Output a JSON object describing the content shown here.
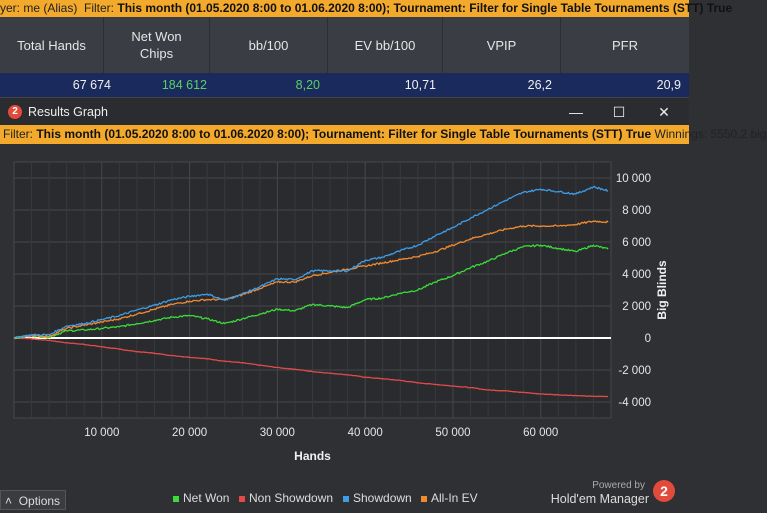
{
  "top_filter": {
    "player_prefix": "yer: me (Alias)",
    "filter_label": "Filter:",
    "filter_text": "This month (01.05.2020 8:00 to 01.06.2020 8:00); Tournament: Filter for Single Table Tournaments (STT) True"
  },
  "stats": {
    "headers": [
      "Total Hands",
      "Net Won\nChips",
      "bb/100",
      "EV bb/100",
      "VPIP",
      "PFR"
    ],
    "values": [
      "67 674",
      "184 612",
      "8,20",
      "10,71",
      "26,2",
      "20,9"
    ]
  },
  "window": {
    "icon_text": "2",
    "title": "Results Graph",
    "minimize": "—",
    "maximize": "☐",
    "close": "✕"
  },
  "graph_filter": {
    "label": "Filter:",
    "text": "This month (01.05.2020 8:00 to 01.06.2020 8:00); Tournament: Filter for Single Table Tournaments (STT) True",
    "winnings": "Winnings: 5550,2 big"
  },
  "colors": {
    "net_won": "#3adb3a",
    "non_showdown": "#e04b48",
    "showdown": "#3f9ce6",
    "all_in_ev": "#f08a30"
  },
  "chart_data": {
    "type": "line",
    "xlabel": "Hands",
    "ylabel": "Big Blinds",
    "xlim": [
      0,
      68000
    ],
    "ylim": [
      -5000,
      11000
    ],
    "x_ticks": [
      10000,
      20000,
      30000,
      40000,
      50000,
      60000
    ],
    "x_tick_labels": [
      "10 000",
      "20 000",
      "30 000",
      "40 000",
      "50 000",
      "60 000"
    ],
    "y_ticks": [
      10000,
      8000,
      6000,
      4000,
      2000,
      0,
      -2000,
      -4000
    ],
    "y_tick_labels": [
      "10 000",
      "8 000",
      "6 000",
      "4 000",
      "2 000",
      "0",
      "-2 000",
      "-4 000"
    ],
    "grid": true,
    "legend_position": "bottom",
    "x": [
      0,
      2000,
      4000,
      6000,
      8000,
      10000,
      12000,
      14000,
      16000,
      18000,
      20000,
      22000,
      24000,
      26000,
      28000,
      30000,
      32000,
      34000,
      36000,
      38000,
      40000,
      42000,
      44000,
      46000,
      48000,
      50000,
      52000,
      54000,
      56000,
      58000,
      60000,
      62000,
      64000,
      66000,
      67674
    ],
    "series": [
      {
        "name": "Net Won",
        "color": "#3adb3a",
        "values": [
          0,
          150,
          50,
          450,
          500,
          600,
          700,
          900,
          1100,
          1300,
          1400,
          1200,
          900,
          1200,
          1500,
          1800,
          1700,
          2100,
          2000,
          1900,
          2400,
          2500,
          2800,
          3000,
          3500,
          3900,
          4400,
          4800,
          5300,
          5700,
          5800,
          5600,
          5400,
          5800,
          5550
        ]
      },
      {
        "name": "Non Showdown",
        "color": "#e04b48",
        "values": [
          0,
          -50,
          -150,
          -300,
          -400,
          -550,
          -700,
          -850,
          -950,
          -1100,
          -1200,
          -1300,
          -1450,
          -1550,
          -1700,
          -1850,
          -1950,
          -2100,
          -2200,
          -2300,
          -2450,
          -2550,
          -2650,
          -2800,
          -2900,
          -3000,
          -3100,
          -3250,
          -3300,
          -3400,
          -3500,
          -3550,
          -3600,
          -3650,
          -3650
        ]
      },
      {
        "name": "Showdown",
        "color": "#3f9ce6",
        "values": [
          0,
          200,
          200,
          750,
          900,
          1150,
          1400,
          1750,
          2050,
          2400,
          2600,
          2750,
          2350,
          2750,
          3200,
          3700,
          3650,
          4200,
          4200,
          4200,
          4850,
          5050,
          5450,
          5800,
          6400,
          6900,
          7500,
          8050,
          8600,
          9100,
          9300,
          9150,
          9000,
          9450,
          9200
        ]
      },
      {
        "name": "All-In EV",
        "color": "#f08a30",
        "values": [
          0,
          150,
          100,
          600,
          800,
          1000,
          1200,
          1500,
          1800,
          2100,
          2300,
          2400,
          2400,
          2700,
          3100,
          3500,
          3500,
          3900,
          4100,
          4300,
          4500,
          4700,
          4900,
          5100,
          5400,
          5800,
          6200,
          6500,
          6800,
          7000,
          7000,
          7000,
          7100,
          7300,
          7250
        ]
      }
    ]
  },
  "legend": [
    {
      "label": "Net Won",
      "color": "#3adb3a"
    },
    {
      "label": "Non Showdown",
      "color": "#e04b48"
    },
    {
      "label": "Showdown",
      "color": "#3f9ce6"
    },
    {
      "label": "All-In EV",
      "color": "#f08a30"
    }
  ],
  "bottom": {
    "options_label": "Options",
    "options_caret": "˄",
    "powered_by": "Powered by",
    "brand": "Hold'em Manager",
    "brand_logo": "2"
  }
}
